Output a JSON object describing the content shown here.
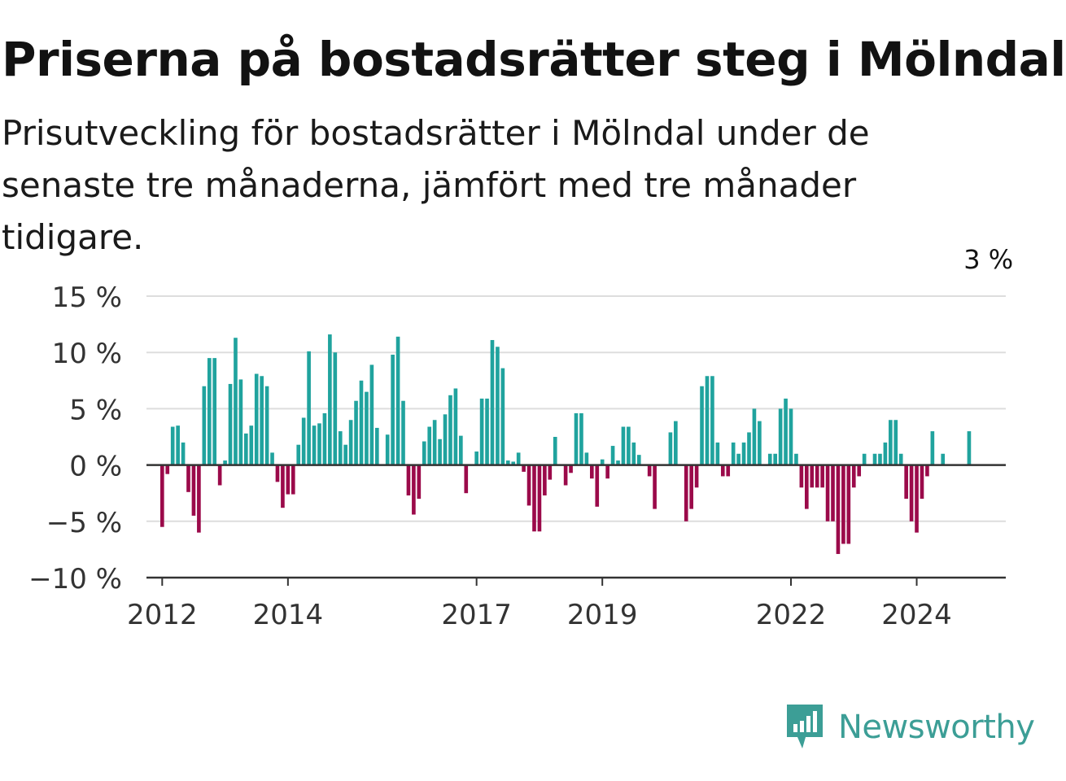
{
  "title": "Priserna på bostadsrätter steg i Mölndal",
  "subtitle": "Prisutveckling för bostadsrätter i Mölndal under de senaste tre månaderna, jämfört med tre månader tidigare.",
  "brand": {
    "name": "Newsworthy",
    "color": "#3c9e96",
    "icon": "newsworthy-logo-icon"
  },
  "colors": {
    "positive": "#20a39e",
    "negative": "#9b0a4a",
    "gridline": "#dddddd",
    "zero_line": "#333333"
  },
  "chart_data": {
    "type": "bar",
    "ylim": [
      -10,
      15
    ],
    "yticks": [
      15,
      10,
      5,
      0,
      -5,
      -10
    ],
    "ytick_labels": [
      "15 %",
      "10 %",
      "5 %",
      "0 %",
      "−5 %",
      "−10 %"
    ],
    "xticks": [
      {
        "label": "2012",
        "year": 2012
      },
      {
        "label": "2014",
        "year": 2014
      },
      {
        "label": "2017",
        "year": 2017
      },
      {
        "label": "2019",
        "year": 2019
      },
      {
        "label": "2022",
        "year": 2022
      },
      {
        "label": "2024",
        "year": 2024
      }
    ],
    "x_start": "2011-10",
    "x_end": "2025-06",
    "series_start": "2012-01",
    "values": [
      -5.5,
      -0.8,
      3.4,
      3.5,
      2.0,
      -2.4,
      -4.5,
      -6.0,
      7.0,
      9.5,
      9.5,
      -1.8,
      0.4,
      7.2,
      11.3,
      7.6,
      2.8,
      3.5,
      8.1,
      7.9,
      7.0,
      1.1,
      -1.5,
      -3.8,
      -2.6,
      -2.6,
      1.8,
      4.2,
      10.1,
      3.5,
      3.7,
      4.6,
      11.6,
      10.0,
      3.0,
      1.8,
      4.0,
      5.7,
      7.5,
      6.5,
      8.9,
      3.3,
      0,
      2.7,
      9.8,
      11.4,
      5.7,
      -2.7,
      -4.4,
      -3.0,
      2.1,
      3.4,
      4.0,
      2.3,
      4.5,
      6.2,
      6.8,
      2.6,
      -2.5,
      0,
      1.2,
      5.9,
      5.9,
      11.1,
      10.5,
      8.6,
      0.4,
      0.3,
      1.1,
      -0.6,
      -3.6,
      -5.9,
      -5.9,
      -2.7,
      -1.3,
      2.5,
      0,
      -1.8,
      -0.7,
      4.6,
      4.6,
      1.1,
      -1.2,
      -3.7,
      0.5,
      -1.2,
      1.7,
      0.4,
      3.4,
      3.4,
      2.0,
      0.9,
      0,
      -1.0,
      -3.9,
      0,
      0,
      2.9,
      3.9,
      0,
      -5.0,
      -3.9,
      -2.0,
      7.0,
      7.9,
      7.9,
      2.0,
      -1.0,
      -1.0,
      2.0,
      1.0,
      2.0,
      2.9,
      5.0,
      3.9,
      0,
      1.0,
      1.0,
      5.0,
      5.9,
      5.0,
      1.0,
      -2.0,
      -3.9,
      -2.0,
      -2.0,
      -2.0,
      -5.0,
      -5.0,
      -7.9,
      -7.0,
      -7.0,
      -2.0,
      -1.0,
      1.0,
      0,
      1.0,
      1.0,
      2.0,
      4.0,
      4.0,
      1.0,
      -3.0,
      -5.0,
      -6.0,
      -3.0,
      -1.0,
      3.0,
      0,
      1.0,
      0,
      0,
      0,
      0,
      3.0
    ],
    "annotation": {
      "text": "3 %",
      "index": 158
    }
  }
}
